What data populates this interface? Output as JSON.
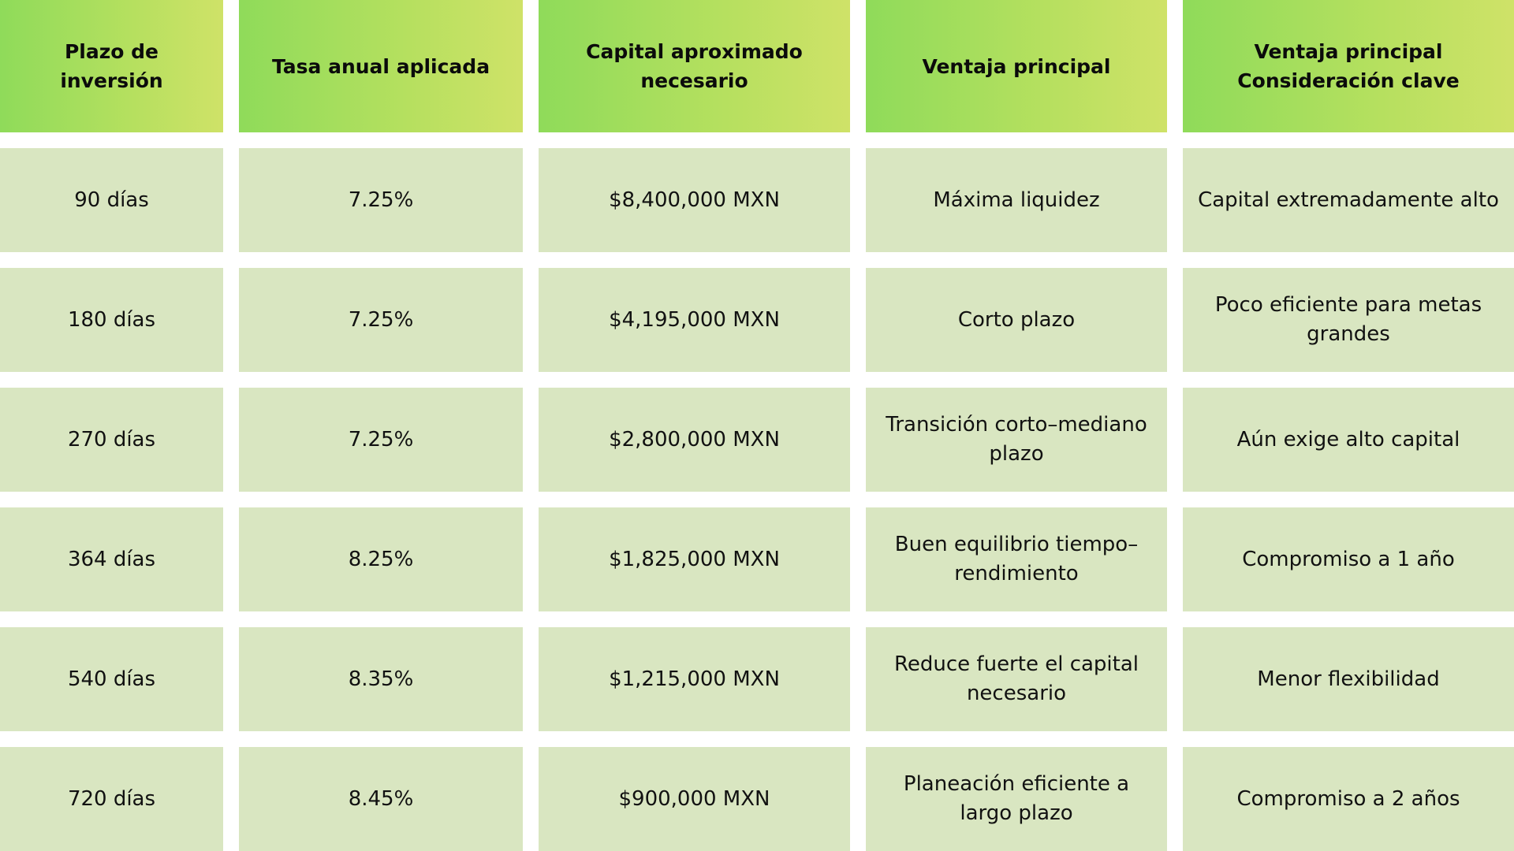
{
  "table": {
    "headers": [
      "Plazo de inversión",
      "Tasa anual aplicada",
      "Capital aproximado\nnecesario",
      "Ventaja principal",
      "Ventaja principal\nConsideración clave"
    ],
    "rows": [
      [
        "90 días",
        "7.25%",
        "$8,400,000 MXN",
        "Máxima liquidez",
        "Capital extremadamente alto"
      ],
      [
        "180 días",
        "7.25%",
        "$4,195,000 MXN",
        "Corto plazo",
        "Poco eficiente para metas\ngrandes"
      ],
      [
        "270 días",
        "7.25%",
        "$2,800,000 MXN",
        "Transición corto–mediano\nplazo",
        "Aún exige alto capital"
      ],
      [
        "364 días",
        "8.25%",
        "$1,825,000 MXN",
        "Buen equilibrio tiempo–\nrendimiento",
        "Compromiso a 1 año"
      ],
      [
        "540 días",
        "8.35%",
        "$1,215,000 MXN",
        "Reduce fuerte el capital\nnecesario",
        "Menor flexibilidad"
      ],
      [
        "720 días",
        "8.45%",
        "$900,000 MXN",
        "Planeación eficiente a\nlargo plazo",
        "Compromiso a 2 años"
      ]
    ]
  },
  "colors": {
    "header_gradient_start": "#8fdb5a",
    "header_gradient_end": "#cfe268",
    "body_cell": "#d9e6c1",
    "background": "#ffffff"
  }
}
